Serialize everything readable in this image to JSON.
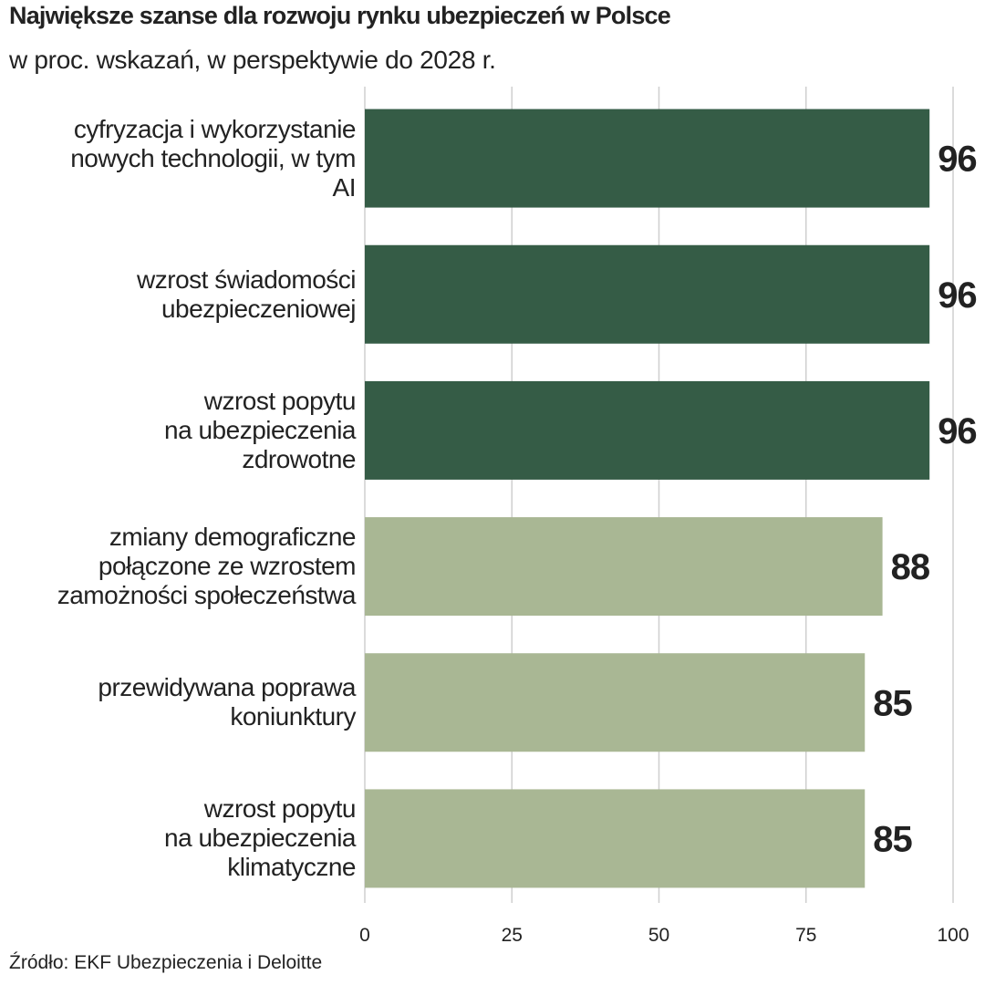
{
  "chart_data": {
    "type": "barh",
    "title": "Największe szanse dla rozwoju rynku ubezpieczeń w Polsce",
    "subtitle": "w proc. wskazań, w perspektywie do 2028 r.",
    "categories": [
      "cyfryzacja i wykorzystanie\nnowych technologii, w tym\nAI",
      "wzrost świadomości\nubezpieczeniowej",
      "wzrost popytu\nna ubezpieczenia\nzdrowotne",
      "zmiany demograficzne\npołączone ze wzrostem\nzamożności społeczeństwa",
      "przewidywana poprawa\nkoniunktury",
      "wzrost popytu\nna ubezpieczenia\nklimatyczne"
    ],
    "values": [
      96,
      96,
      96,
      88,
      85,
      85
    ],
    "colors": [
      "#355c46",
      "#355c46",
      "#355c46",
      "#a9b794",
      "#a9b794",
      "#a9b794"
    ],
    "xlim": [
      0,
      100
    ],
    "xticks": [
      0,
      25,
      50,
      75,
      100
    ],
    "grid": true,
    "source": "Źródło: EKF Ubezpieczenia i Deloitte"
  }
}
